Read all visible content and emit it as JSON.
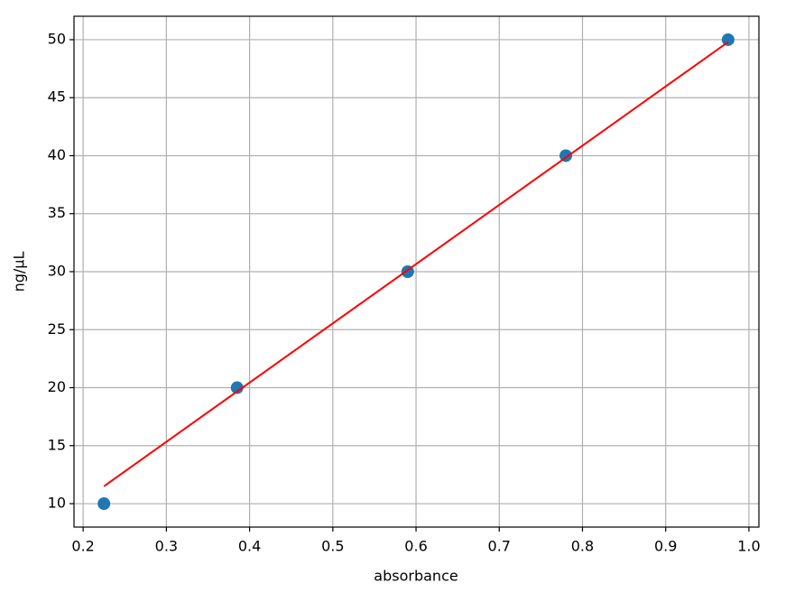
{
  "chart_data": {
    "type": "scatter",
    "xlabel": "absorbance",
    "ylabel": "ng/μL",
    "series": [
      {
        "style": "markers",
        "color": "#1f77b4",
        "x": [
          0.225,
          0.385,
          0.59,
          0.78,
          0.975
        ],
        "values": [
          10,
          20,
          30,
          40,
          50
        ]
      },
      {
        "style": "line",
        "color": "#ff0000",
        "x": [
          0.225,
          0.975
        ],
        "values": [
          11.5,
          49.8
        ]
      }
    ],
    "xlim": [
      0.189,
      1.012
    ],
    "ylim": [
      7.98,
      52.02
    ],
    "xticks": [
      0.2,
      0.3,
      0.4,
      0.5,
      0.6,
      0.7,
      0.8,
      0.9,
      {
        "value": 1,
        "label": "1.0"
      }
    ],
    "yticks": [
      10,
      15,
      20,
      25,
      30,
      35,
      40,
      45,
      50
    ],
    "grid": true
  }
}
